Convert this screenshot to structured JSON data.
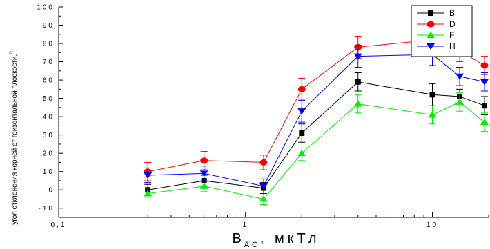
{
  "chart_data": {
    "type": "line",
    "xlabel": "В",
    "xlabel_subscript": "АС",
    "xlabel_unit": ", мкТл",
    "ylabel": "угол отклонения корней от гоизонтальной плоскости,",
    "ylabel_unit": "о",
    "x_scale": "log",
    "xlim": [
      0.1,
      20
    ],
    "ylim": [
      -15,
      100
    ],
    "x_tick_labels": [
      {
        "value": 0.1,
        "label": "0,1"
      },
      {
        "value": 1,
        "label": "1"
      },
      {
        "value": 10,
        "label": "10"
      }
    ],
    "y_tick_labels": [
      {
        "value": -10,
        "label": "-10"
      },
      {
        "value": 0,
        "label": "0"
      },
      {
        "value": 10,
        "label": "10"
      },
      {
        "value": 20,
        "label": "20"
      },
      {
        "value": 30,
        "label": "30"
      },
      {
        "value": 40,
        "label": "40"
      },
      {
        "value": 50,
        "label": "50"
      },
      {
        "value": 60,
        "label": "60"
      },
      {
        "value": 70,
        "label": "70"
      },
      {
        "value": 80,
        "label": "80"
      },
      {
        "value": 90,
        "label": "90"
      },
      {
        "value": 100,
        "label": "100"
      }
    ],
    "grid": false,
    "legend_position": "top-right",
    "x": [
      0.3,
      0.6,
      1.25,
      2,
      4,
      10,
      14,
      19
    ],
    "series": [
      {
        "name": "B",
        "color": "#000000",
        "marker": "square",
        "values": [
          0,
          5,
          1,
          31,
          59,
          52,
          51,
          46
        ],
        "errors": [
          3,
          3,
          3,
          5,
          5,
          6,
          4,
          5
        ]
      },
      {
        "name": "D",
        "color": "#ff0000",
        "marker": "circle",
        "values": [
          10,
          16,
          15,
          55,
          78,
          82,
          76,
          68
        ],
        "errors": [
          5,
          5,
          4,
          6,
          6,
          5,
          6,
          5
        ]
      },
      {
        "name": "F",
        "color": "#00ee00",
        "marker": "triangle-up",
        "values": [
          -2,
          2,
          -5,
          20,
          47,
          41,
          48,
          37
        ],
        "errors": [
          3,
          3,
          3,
          4,
          5,
          5,
          5,
          5
        ]
      },
      {
        "name": "H",
        "color": "#0000ff",
        "marker": "triangle-down",
        "values": [
          8,
          9,
          2,
          43,
          73,
          74,
          62,
          59
        ],
        "errors": [
          4,
          4,
          4,
          6,
          6,
          6,
          5,
          5
        ]
      }
    ]
  }
}
